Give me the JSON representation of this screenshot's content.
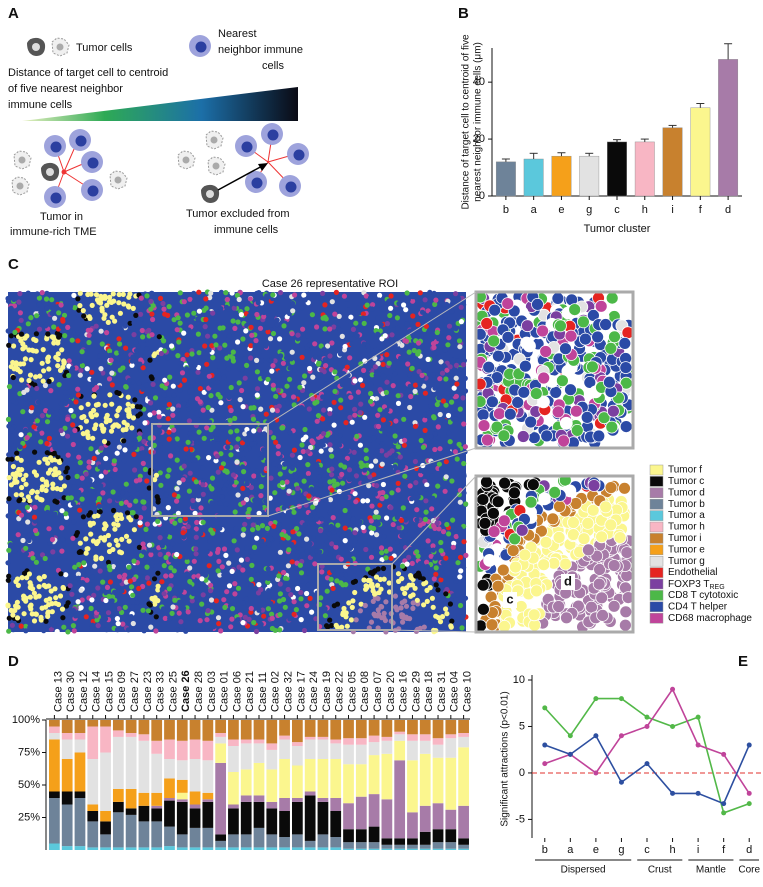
{
  "panel_a": {
    "label": "A",
    "tumor_cells": "Tumor cells",
    "immune_cells": [
      "Nearest",
      "neighbor immune",
      "cells"
    ],
    "distance": [
      "Distance of target cell to centroid",
      "of five nearest neighbor",
      "immune cells"
    ],
    "left_caption": [
      "Tumor in",
      "immune-rich TME"
    ],
    "right_caption": [
      "Tumor excluded from",
      "immune cells"
    ]
  },
  "panel_c": {
    "label": "C",
    "title": "Case 26 representative ROI",
    "inset_labels": [
      "c",
      "d"
    ],
    "legend": [
      {
        "label": "Tumor f",
        "color": "#fbf68e"
      },
      {
        "label": "Tumor c",
        "color": "#0a0a0a"
      },
      {
        "label": "Tumor d",
        "color": "#a77ba8"
      },
      {
        "label": "Tumor b",
        "color": "#6e8399"
      },
      {
        "label": "Tumor a",
        "color": "#5bc8dc"
      },
      {
        "label": "Tumor h",
        "color": "#f8b6c4"
      },
      {
        "label": "Tumor i",
        "color": "#c8812e"
      },
      {
        "label": "Tumor e",
        "color": "#f5a01a"
      },
      {
        "label": "Tumor g",
        "color": "#e2e2e2"
      },
      {
        "label": "Endothelial",
        "color": "#e52421"
      },
      {
        "label": "FOXP3 T",
        "sub": "REG",
        "color": "#7b3fa0"
      },
      {
        "label": "CD8 T cytotoxic",
        "color": "#4cb848"
      },
      {
        "label": "CD4 T helper",
        "color": "#2b4aa6"
      },
      {
        "label": "CD68 macrophage",
        "color": "#c0449a"
      }
    ]
  },
  "chart_data": [
    {
      "type": "bar",
      "panel": "B",
      "ylabel": [
        "Distance of target cell to centroid of five",
        "nearest neighbor immune cells (μm)"
      ],
      "xlabel": "Tumor cluster",
      "categories": [
        "b",
        "a",
        "e",
        "g",
        "c",
        "h",
        "i",
        "f",
        "d"
      ],
      "values": [
        12,
        13,
        14,
        14,
        19,
        19,
        24,
        31,
        48
      ],
      "errors": [
        1,
        2,
        1.2,
        1,
        0.8,
        1,
        0.8,
        1.5,
        5.5
      ],
      "colors": [
        "#6e8399",
        "#5bc8dc",
        "#f5a01a",
        "#e2e2e2",
        "#0a0a0a",
        "#f8b6c4",
        "#c8812e",
        "#fbf68e",
        "#a77ba8"
      ],
      "ylim": [
        0,
        52
      ],
      "yticks": [
        0,
        20,
        40
      ]
    },
    {
      "type": "stacked-bar",
      "panel": "D",
      "categories": [
        "Case 13",
        "Case 30",
        "Case 12",
        "Case 14",
        "Case 15",
        "Case 09",
        "Case 27",
        "Case 23",
        "Case 33",
        "Case 25",
        "Case 26",
        "Case 28",
        "Case 03",
        "Case 01",
        "Case 06",
        "Case 21",
        "Case 11",
        "Case 02",
        "Case 32",
        "Case 17",
        "Case 24",
        "Case 19",
        "Case 22",
        "Case 05",
        "Case 08",
        "Case 07",
        "Case 20",
        "Case 16",
        "Case 29",
        "Case 18",
        "Case 31",
        "Case 04",
        "Case 10"
      ],
      "series": [
        {
          "color": "#5bc8dc",
          "values": [
            5,
            3,
            3,
            2,
            2,
            2,
            2,
            2,
            2,
            3,
            2,
            2,
            2,
            2,
            2,
            2,
            2,
            2,
            2,
            2,
            2,
            2,
            2,
            1,
            1,
            1,
            1,
            1,
            1,
            1,
            1,
            1,
            1
          ]
        },
        {
          "color": "#6e8399",
          "values": [
            35,
            32,
            37,
            20,
            10,
            27,
            25,
            20,
            20,
            15,
            10,
            15,
            15,
            5,
            10,
            10,
            15,
            10,
            8,
            10,
            5,
            10,
            8,
            5,
            5,
            5,
            3,
            3,
            3,
            3,
            5,
            5,
            3
          ]
        },
        {
          "color": "#0a0a0a",
          "values": [
            5,
            10,
            5,
            8,
            10,
            8,
            5,
            12,
            10,
            20,
            25,
            15,
            20,
            5,
            20,
            25,
            20,
            20,
            20,
            25,
            35,
            25,
            20,
            10,
            10,
            12,
            5,
            5,
            5,
            10,
            10,
            10,
            5
          ]
        },
        {
          "color": "#a77ba8",
          "values": [
            0,
            0,
            0,
            0,
            0,
            0,
            0,
            0,
            2,
            2,
            2,
            3,
            2,
            55,
            3,
            5,
            5,
            5,
            10,
            3,
            3,
            3,
            10,
            20,
            25,
            25,
            30,
            60,
            20,
            20,
            20,
            15,
            25
          ]
        },
        {
          "color": "#fbf68e",
          "values": [
            0,
            0,
            0,
            0,
            0,
            0,
            0,
            0,
            0,
            0,
            5,
            0,
            0,
            15,
            25,
            20,
            25,
            25,
            30,
            25,
            25,
            30,
            30,
            30,
            25,
            30,
            35,
            15,
            40,
            40,
            35,
            40,
            45
          ]
        },
        {
          "color": "#f5a01a",
          "values": [
            40,
            25,
            30,
            5,
            8,
            10,
            15,
            10,
            10,
            15,
            10,
            10,
            5,
            0,
            0,
            0,
            0,
            0,
            0,
            0,
            0,
            0,
            0,
            0,
            0,
            0,
            0,
            0,
            0,
            0,
            0,
            0,
            0
          ]
        },
        {
          "color": "#e2e2e2",
          "values": [
            5,
            15,
            10,
            35,
            45,
            40,
            40,
            40,
            30,
            15,
            15,
            25,
            25,
            5,
            20,
            20,
            15,
            15,
            15,
            15,
            15,
            15,
            12,
            15,
            15,
            10,
            10,
            5,
            15,
            10,
            10,
            15,
            8
          ]
        },
        {
          "color": "#f8b6c4",
          "values": [
            5,
            5,
            5,
            25,
            20,
            5,
            3,
            5,
            10,
            15,
            15,
            15,
            15,
            3,
            5,
            3,
            3,
            5,
            3,
            3,
            2,
            2,
            3,
            5,
            5,
            5,
            3,
            2,
            5,
            5,
            5,
            3,
            3
          ]
        },
        {
          "color": "#c8812e",
          "values": [
            5,
            10,
            10,
            5,
            5,
            8,
            10,
            11,
            16,
            15,
            16,
            15,
            16,
            10,
            15,
            15,
            15,
            18,
            12,
            17,
            13,
            13,
            15,
            14,
            14,
            12,
            13,
            9,
            11,
            11,
            14,
            11,
            10
          ]
        }
      ],
      "ylim": [
        0,
        100
      ],
      "yticks": [
        {
          "value": 25,
          "label": "25%"
        },
        {
          "value": 50,
          "label": "50%"
        },
        {
          "value": 75,
          "label": "75%"
        },
        {
          "value": 100,
          "label": "100%"
        }
      ]
    },
    {
      "type": "line",
      "panel": "E",
      "ylabel": "Significant attractions (p<0.01)",
      "categories": [
        "b",
        "a",
        "e",
        "g",
        "c",
        "h",
        "i",
        "f",
        "d"
      ],
      "series": [
        {
          "color": "#52b848",
          "values": [
            7,
            4,
            8,
            8,
            6,
            5,
            6,
            -4.3,
            -3.3
          ]
        },
        {
          "color": "#c0449a",
          "values": [
            1,
            2,
            0,
            4,
            5,
            9,
            3,
            2,
            -2.2
          ]
        },
        {
          "color": "#2d4fa0",
          "values": [
            3,
            2,
            4,
            -1,
            1,
            -2.2,
            -2.2,
            -3.3,
            3
          ]
        }
      ],
      "hline": {
        "value": 0,
        "color": "#e0302e"
      },
      "groups": [
        {
          "label": "Dispersed",
          "size": 4
        },
        {
          "label": "Crust",
          "size": 2
        },
        {
          "label": "Mantle",
          "size": 2
        },
        {
          "label": "Core",
          "size": 1
        }
      ],
      "ylim": [
        -7,
        10
      ],
      "yticks": [
        -5,
        0,
        5,
        10
      ]
    }
  ]
}
